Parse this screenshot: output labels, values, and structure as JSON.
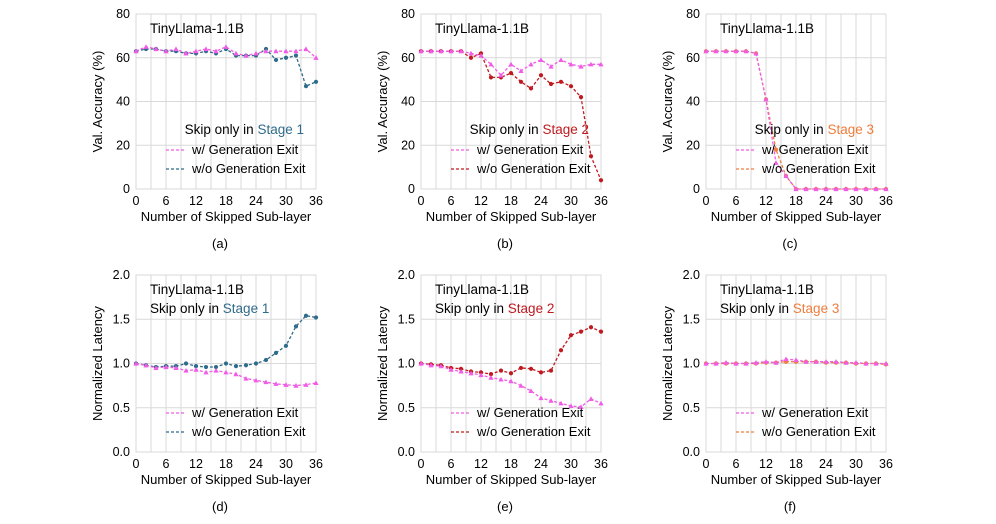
{
  "colors": {
    "with_exit": "#f05ce6",
    "stage_colors": [
      "#2f6b8a",
      "#c0191f",
      "#ef7d3c"
    ],
    "without_exit": [
      "#2f6b8a",
      "#c0191f",
      "#ef7d3c"
    ]
  },
  "chart_data": [
    {
      "type": "line",
      "caption": "(a)",
      "title": "TinyLlama-1.1B",
      "stage_prefix": "Skip only in ",
      "stage_label": "Stage 1",
      "xlabel": "Number of Skipped Sub-layer",
      "ylabel": "Val. Accuracy (%)",
      "xlim": [
        0,
        36
      ],
      "ylim": [
        0,
        80
      ],
      "xticks": [
        0,
        6,
        12,
        18,
        24,
        30,
        36
      ],
      "yticks": [
        0,
        20,
        40,
        60,
        80
      ],
      "x": [
        0,
        2,
        4,
        6,
        8,
        10,
        12,
        14,
        16,
        18,
        20,
        22,
        24,
        26,
        28,
        30,
        32,
        34,
        36
      ],
      "series": [
        {
          "name": "w/ Generation Exit",
          "values": [
            63,
            65,
            64,
            63,
            64,
            62,
            63,
            64,
            63,
            65,
            62,
            61,
            62,
            63,
            63,
            63,
            63,
            64,
            60
          ]
        },
        {
          "name": "w/o Generation Exit",
          "values": [
            63,
            64,
            64,
            63,
            63,
            62,
            62,
            63,
            62,
            64,
            61,
            61,
            61,
            64,
            59,
            60,
            61,
            47,
            49
          ]
        }
      ]
    },
    {
      "type": "line",
      "caption": "(b)",
      "title": "TinyLlama-1.1B",
      "stage_prefix": "Skip only in ",
      "stage_label": "Stage 2",
      "xlabel": "Number of Skipped Sub-layer",
      "ylabel": "Val. Accuracy (%)",
      "xlim": [
        0,
        36
      ],
      "ylim": [
        0,
        80
      ],
      "xticks": [
        0,
        6,
        12,
        18,
        24,
        30,
        36
      ],
      "yticks": [
        0,
        20,
        40,
        60,
        80
      ],
      "x": [
        0,
        2,
        4,
        6,
        8,
        10,
        12,
        14,
        16,
        18,
        20,
        22,
        24,
        26,
        28,
        30,
        32,
        34,
        36
      ],
      "series": [
        {
          "name": "w/ Generation Exit",
          "values": [
            63,
            63,
            63,
            63,
            63,
            62,
            61,
            57,
            52,
            57,
            54,
            57,
            59,
            56,
            59,
            57,
            56,
            57,
            57
          ]
        },
        {
          "name": "w/o Generation Exit",
          "values": [
            63,
            63,
            63,
            63,
            63,
            60,
            62,
            51,
            51,
            53,
            49,
            46,
            52,
            48,
            49,
            47,
            42,
            15,
            4
          ]
        }
      ]
    },
    {
      "type": "line",
      "caption": "(c)",
      "title": "TinyLlama-1.1B",
      "stage_prefix": "Skip only in ",
      "stage_label": "Stage 3",
      "xlabel": "Number of Skipped Sub-layer",
      "ylabel": "Val. Accuracy (%)",
      "xlim": [
        0,
        36
      ],
      "ylim": [
        0,
        80
      ],
      "xticks": [
        0,
        6,
        12,
        18,
        24,
        30,
        36
      ],
      "yticks": [
        0,
        20,
        40,
        60,
        80
      ],
      "x": [
        0,
        2,
        4,
        6,
        8,
        10,
        12,
        14,
        16,
        18,
        20,
        22,
        24,
        26,
        28,
        30,
        32,
        34,
        36
      ],
      "series": [
        {
          "name": "w/ Generation Exit",
          "values": [
            63,
            63,
            63,
            63,
            63,
            62,
            41,
            12,
            6,
            0,
            0,
            0,
            0,
            0,
            0,
            0,
            0,
            0,
            0
          ]
        },
        {
          "name": "w/o Generation Exit",
          "values": [
            63,
            63,
            63,
            63,
            63,
            62,
            41,
            18,
            6,
            0,
            0,
            0,
            0,
            0,
            0,
            0,
            0,
            0,
            0
          ]
        }
      ]
    },
    {
      "type": "line",
      "caption": "(d)",
      "title": "TinyLlama-1.1B",
      "stage_prefix": "Skip only in ",
      "stage_label": "Stage 1",
      "xlabel": "Number of Skipped Sub-layer",
      "ylabel": "Normalized Latency",
      "xlim": [
        0,
        36
      ],
      "ylim": [
        0,
        2.0
      ],
      "xticks": [
        0,
        6,
        12,
        18,
        24,
        30,
        36
      ],
      "yticks": [
        0.0,
        0.5,
        1.0,
        1.5,
        2.0
      ],
      "x": [
        0,
        2,
        4,
        6,
        8,
        10,
        12,
        14,
        16,
        18,
        20,
        22,
        24,
        26,
        28,
        30,
        32,
        34,
        36
      ],
      "series": [
        {
          "name": "w/ Generation Exit",
          "values": [
            1.0,
            0.98,
            0.95,
            0.96,
            0.95,
            0.92,
            0.93,
            0.9,
            0.92,
            0.9,
            0.88,
            0.83,
            0.81,
            0.79,
            0.77,
            0.76,
            0.75,
            0.76,
            0.78
          ]
        },
        {
          "name": "w/o Generation Exit",
          "values": [
            1.0,
            0.98,
            0.96,
            0.97,
            0.97,
            1.0,
            0.97,
            0.96,
            0.96,
            1.0,
            0.97,
            0.98,
            1.0,
            1.04,
            1.12,
            1.2,
            1.42,
            1.54,
            1.52
          ]
        }
      ]
    },
    {
      "type": "line",
      "caption": "(e)",
      "title": "TinyLlama-1.1B",
      "stage_prefix": "Skip only in ",
      "stage_label": "Stage 2",
      "xlabel": "Number of Skipped Sub-layer",
      "ylabel": "Normalized Latency",
      "xlim": [
        0,
        36
      ],
      "ylim": [
        0,
        2.0
      ],
      "xticks": [
        0,
        6,
        12,
        18,
        24,
        30,
        36
      ],
      "yticks": [
        0.0,
        0.5,
        1.0,
        1.5,
        2.0
      ],
      "x": [
        0,
        2,
        4,
        6,
        8,
        10,
        12,
        14,
        16,
        18,
        20,
        22,
        24,
        26,
        28,
        30,
        32,
        34,
        36
      ],
      "series": [
        {
          "name": "w/ Generation Exit",
          "values": [
            1.0,
            0.98,
            0.97,
            0.93,
            0.91,
            0.89,
            0.87,
            0.84,
            0.82,
            0.8,
            0.75,
            0.69,
            0.61,
            0.58,
            0.55,
            0.52,
            0.51,
            0.6,
            0.55
          ]
        },
        {
          "name": "w/o Generation Exit",
          "values": [
            1.0,
            0.99,
            0.98,
            0.95,
            0.94,
            0.91,
            0.9,
            0.88,
            0.92,
            0.89,
            0.95,
            0.94,
            0.9,
            0.92,
            1.15,
            1.32,
            1.36,
            1.41,
            1.36
          ]
        }
      ]
    },
    {
      "type": "line",
      "caption": "(f)",
      "title": "TinyLlama-1.1B",
      "stage_prefix": "Skip only in ",
      "stage_label": "Stage 3",
      "xlabel": "Number of Skipped Sub-layer",
      "ylabel": "Normalized Latency",
      "xlim": [
        0,
        36
      ],
      "ylim": [
        0,
        2.0
      ],
      "xticks": [
        0,
        6,
        12,
        18,
        24,
        30,
        36
      ],
      "yticks": [
        0.0,
        0.5,
        1.0,
        1.5,
        2.0
      ],
      "x": [
        0,
        2,
        4,
        6,
        8,
        10,
        12,
        14,
        16,
        18,
        20,
        22,
        24,
        26,
        28,
        30,
        32,
        34,
        36
      ],
      "series": [
        {
          "name": "w/ Generation Exit",
          "values": [
            1.0,
            1.0,
            1.01,
            1.0,
            1.0,
            1.01,
            1.02,
            1.01,
            1.05,
            1.04,
            1.02,
            1.02,
            1.02,
            1.02,
            1.01,
            1.01,
            1.0,
            1.0,
            1.0
          ]
        },
        {
          "name": "w/o Generation Exit",
          "values": [
            1.0,
            1.0,
            1.0,
            1.0,
            1.0,
            1.0,
            1.01,
            1.01,
            1.02,
            1.02,
            1.02,
            1.02,
            1.01,
            1.01,
            1.01,
            1.0,
            1.0,
            1.0,
            0.99
          ]
        }
      ]
    }
  ]
}
